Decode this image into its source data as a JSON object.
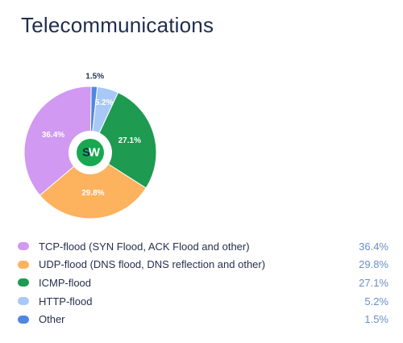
{
  "header": {
    "title": "Telecommunications"
  },
  "logo": {
    "text_s": "S",
    "text_w": "W"
  },
  "chart_data": {
    "type": "pie",
    "title": "Telecommunications",
    "slices": [
      {
        "name": "TCP-flood (SYN Flood, ACK Flood and other)",
        "value": 36.4,
        "label": "36.4%",
        "color": "#d199f2"
      },
      {
        "name": "UDP-flood (DNS flood, DNS reflection and other)",
        "value": 29.8,
        "label": "29.8%",
        "color": "#fdb25e"
      },
      {
        "name": "ICMP-flood",
        "value": 27.1,
        "label": "27.1%",
        "color": "#1e9a51"
      },
      {
        "name": "HTTP-flood",
        "value": 5.2,
        "label": "5.2%",
        "color": "#a8c9f7"
      },
      {
        "name": "Other",
        "value": 1.5,
        "label": "1.5%",
        "color": "#4f87e0"
      }
    ],
    "legend_placement": "bottom"
  }
}
